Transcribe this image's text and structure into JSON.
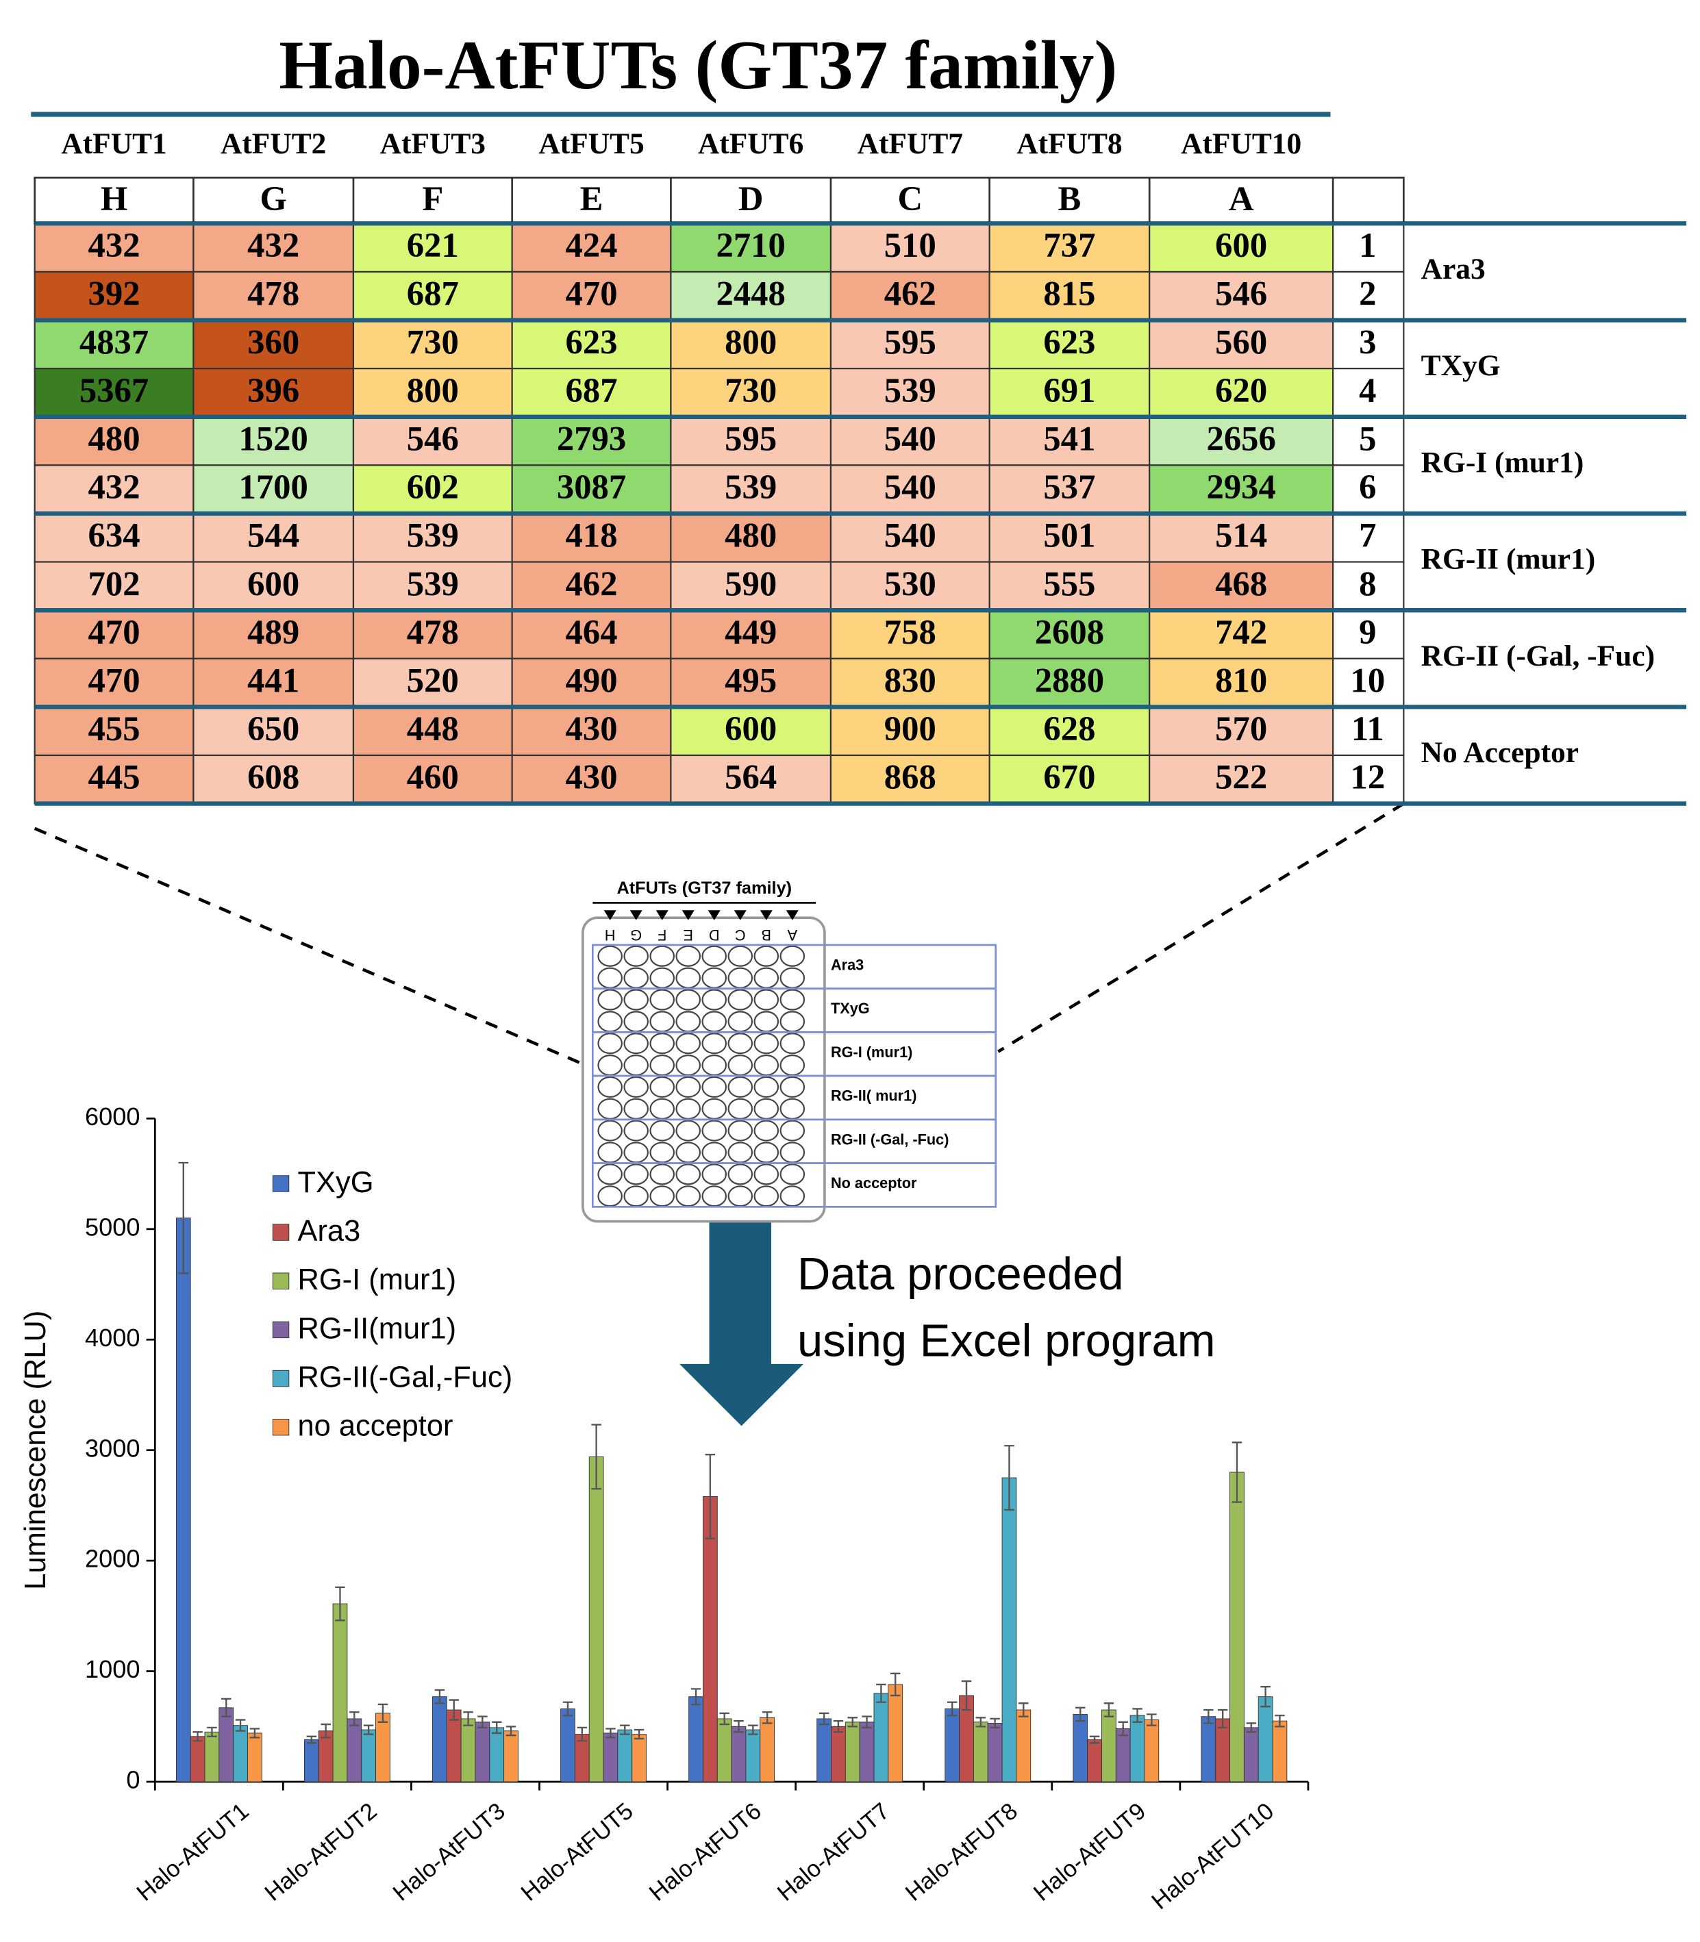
{
  "title": "Halo-AtFUTs (GT37 family)",
  "table": {
    "genes": [
      "AtFUT1",
      "AtFUT2",
      "AtFUT3",
      "AtFUT5",
      "AtFUT6",
      "AtFUT7",
      "AtFUT8",
      "AtFUT10"
    ],
    "columns": [
      "H",
      "G",
      "F",
      "E",
      "D",
      "C",
      "B",
      "A"
    ],
    "rows": [
      {
        "label": 1,
        "values": [
          432,
          432,
          621,
          424,
          2710,
          510,
          737,
          600
        ],
        "colors": [
          "#f3a988",
          "#f3a988",
          "#d9f776",
          "#f3a988",
          "#8fd96f",
          "#f8c8b3",
          "#fdd37e",
          "#d9f776"
        ]
      },
      {
        "label": 2,
        "values": [
          392,
          478,
          687,
          470,
          2448,
          462,
          815,
          546
        ],
        "colors": [
          "#c4541b",
          "#f3a988",
          "#d9f776",
          "#f3a988",
          "#c3ebb2",
          "#f3a988",
          "#fdd37e",
          "#f8c8b3"
        ]
      },
      {
        "label": 3,
        "values": [
          4837,
          360,
          730,
          623,
          800,
          595,
          623,
          560
        ],
        "colors": [
          "#8fd96f",
          "#c4541b",
          "#fdd37e",
          "#d9f776",
          "#fdd37e",
          "#f8c8b3",
          "#d9f776",
          "#f8c8b3"
        ]
      },
      {
        "label": 4,
        "values": [
          5367,
          396,
          800,
          687,
          730,
          539,
          691,
          620
        ],
        "colors": [
          "#3a7d22",
          "#c4541b",
          "#fdd37e",
          "#d9f776",
          "#fdd37e",
          "#f8c8b3",
          "#d9f776",
          "#d9f776"
        ]
      },
      {
        "label": 5,
        "values": [
          480,
          1520,
          546,
          2793,
          595,
          540,
          541,
          2656
        ],
        "colors": [
          "#f3a988",
          "#c3ebb2",
          "#f8c8b3",
          "#8fd96f",
          "#f8c8b3",
          "#f8c8b3",
          "#f8c8b3",
          "#c3ebb2"
        ]
      },
      {
        "label": 6,
        "values": [
          432,
          1700,
          602,
          3087,
          539,
          540,
          537,
          2934
        ],
        "colors": [
          "#f8c8b3",
          "#c3ebb2",
          "#d9f776",
          "#8fd96f",
          "#f8c8b3",
          "#f8c8b3",
          "#f8c8b3",
          "#8fd96f"
        ]
      },
      {
        "label": 7,
        "values": [
          634,
          544,
          539,
          418,
          480,
          540,
          501,
          514
        ],
        "colors": [
          "#f8c8b3",
          "#f8c8b3",
          "#f8c8b3",
          "#f3a988",
          "#f3a988",
          "#f8c8b3",
          "#f8c8b3",
          "#f8c8b3"
        ]
      },
      {
        "label": 8,
        "values": [
          702,
          600,
          539,
          462,
          590,
          530,
          555,
          468
        ],
        "colors": [
          "#f8c8b3",
          "#f8c8b3",
          "#f8c8b3",
          "#f3a988",
          "#f8c8b3",
          "#f8c8b3",
          "#f8c8b3",
          "#f3a988"
        ]
      },
      {
        "label": 9,
        "values": [
          470,
          489,
          478,
          464,
          449,
          758,
          2608,
          742
        ],
        "colors": [
          "#f3a988",
          "#f3a988",
          "#f3a988",
          "#f3a988",
          "#f3a988",
          "#fdd37e",
          "#8fd96f",
          "#fdd37e"
        ]
      },
      {
        "label": 10,
        "values": [
          470,
          441,
          520,
          490,
          495,
          830,
          2880,
          810
        ],
        "colors": [
          "#f3a988",
          "#f3a988",
          "#f8c8b3",
          "#f3a988",
          "#f3a988",
          "#fdd37e",
          "#8fd96f",
          "#fdd37e"
        ]
      },
      {
        "label": 11,
        "values": [
          455,
          650,
          448,
          430,
          600,
          900,
          628,
          570
        ],
        "colors": [
          "#f3a988",
          "#f8c8b3",
          "#f3a988",
          "#f3a988",
          "#d9f776",
          "#fdd37e",
          "#d9f776",
          "#f8c8b3"
        ]
      },
      {
        "label": 12,
        "values": [
          445,
          608,
          460,
          430,
          564,
          868,
          670,
          522
        ],
        "colors": [
          "#f3a988",
          "#f8c8b3",
          "#f3a988",
          "#f3a988",
          "#f8c8b3",
          "#fdd37e",
          "#d9f776",
          "#f8c8b3"
        ]
      }
    ],
    "groups": [
      "Ara3",
      "TXyG",
      "RG-I (mur1)",
      "RG-II (mur1)",
      "RG-II (-Gal, -Fuc)",
      "No Acceptor"
    ]
  },
  "plate": {
    "title": "AtFUTs (GT37 family)",
    "columns": [
      "H",
      "G",
      "F",
      "E",
      "D",
      "C",
      "B",
      "A"
    ],
    "groups": [
      "Ara3",
      "TXyG",
      "RG-I (mur1)",
      "RG-II( mur1)",
      "RG-II (-Gal, -Fuc)",
      "No acceptor"
    ]
  },
  "arrow_text": [
    "Data proceeded",
    "using Excel program"
  ],
  "chart_data": {
    "type": "bar",
    "y_label": "Luminescence (RLU)",
    "categories": [
      "Halo-AtFUT1",
      "Halo-AtFUT2",
      "Halo-AtFUT3",
      "Halo-AtFUT5",
      "Halo-AtFUT6",
      "Halo-AtFUT7",
      "Halo-AtFUT8",
      "Halo-AtFUT9",
      "Halo-AtFUT10"
    ],
    "series": [
      {
        "name": "TXyG",
        "color": "#4472c4",
        "values": [
          5100,
          380,
          770,
          660,
          770,
          570,
          660,
          610,
          590
        ],
        "errors": [
          500,
          30,
          60,
          60,
          70,
          50,
          60,
          60,
          60
        ]
      },
      {
        "name": "Ara3",
        "color": "#c0504d",
        "values": [
          410,
          460,
          650,
          430,
          2580,
          500,
          780,
          380,
          570
        ],
        "errors": [
          40,
          60,
          90,
          60,
          380,
          50,
          130,
          30,
          80
        ]
      },
      {
        "name": "RG-I (mur1)",
        "color": "#9bbb59",
        "values": [
          450,
          1610,
          570,
          2940,
          570,
          540,
          540,
          650,
          2800
        ],
        "errors": [
          40,
          150,
          60,
          290,
          50,
          40,
          40,
          60,
          270
        ]
      },
      {
        "name": "RG-II(mur1)",
        "color": "#8064a2",
        "values": [
          670,
          570,
          540,
          440,
          500,
          540,
          530,
          480,
          490
        ],
        "errors": [
          80,
          60,
          50,
          40,
          50,
          50,
          40,
          60,
          40
        ]
      },
      {
        "name": "RG-II(-Gal,-Fuc)",
        "color": "#4bacc6",
        "values": [
          510,
          470,
          490,
          470,
          470,
          800,
          2750,
          600,
          770
        ],
        "errors": [
          50,
          40,
          50,
          40,
          40,
          80,
          290,
          60,
          90
        ]
      },
      {
        "name": "no acceptor",
        "color": "#f79646",
        "values": [
          440,
          620,
          460,
          430,
          580,
          880,
          650,
          560,
          550
        ],
        "errors": [
          40,
          80,
          40,
          40,
          50,
          100,
          60,
          50,
          50
        ]
      }
    ],
    "ylim": [
      0,
      6000
    ],
    "yticks": [
      0,
      1000,
      2000,
      3000,
      4000,
      5000,
      6000
    ],
    "legend": "upper left"
  }
}
